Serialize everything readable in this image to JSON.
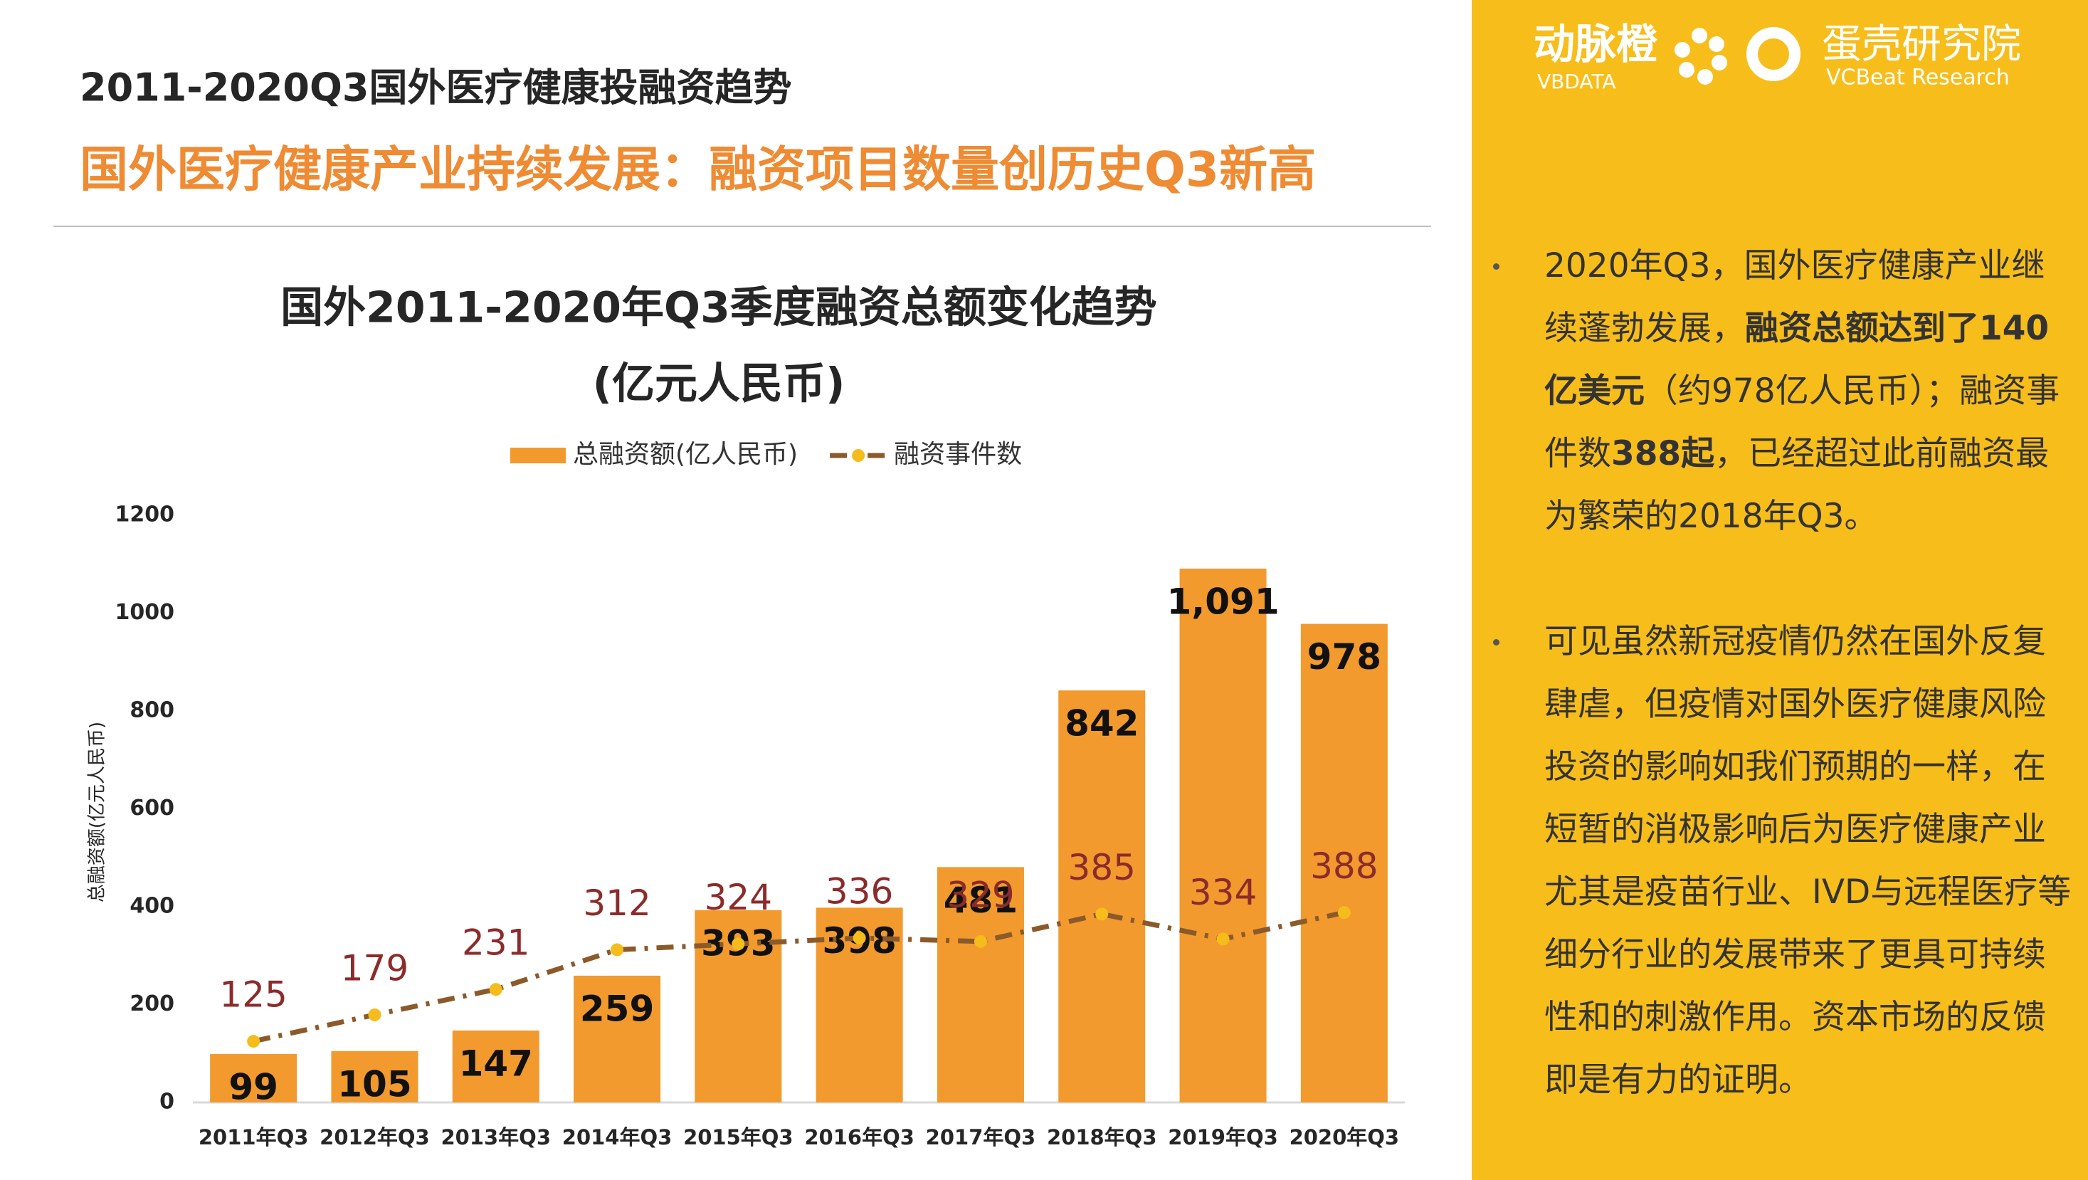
{
  "header": {
    "title": "2011-2020Q3国外医疗健康投融资趋势",
    "subtitle": "国外医疗健康产业持续发展：融资项目数量创历史Q3新高"
  },
  "logo": {
    "brand": "动脉橙",
    "brand_en": "VBDATA",
    "org": "蛋壳研究院",
    "org_en": "VCBeat Research"
  },
  "bullets": [
    [
      "2020年Q3，国外医疗健康产业继续蓬勃发展，",
      "融资总额达到了140亿美元",
      "（约978亿人民币）；融资事件数",
      "388起",
      "，已经超过此前融资最为繁荣的2018年Q3。"
    ],
    [
      "可见虽然新冠疫情仍然在国外反复肆虐，但疫情对国外医疗健康风险投资的影响如我们预期的一样，在短暂的消极影响后为医疗健康产业尤其是疫苗行业、IVD与远程医疗等细分行业的发展带来了更具可持续性和的刺激作用。资本市场的反馈即是有力的证明。"
    ]
  ],
  "chart_data": {
    "type": "bar",
    "title": "国外2011-2020年Q3季度融资总额变化趋势",
    "subtitle": "(亿元人民币)",
    "y_label": "总融资额(亿元人民币)",
    "categories": [
      "2011年Q3",
      "2012年Q3",
      "2013年Q3",
      "2014年Q3",
      "2015年Q3",
      "2016年Q3",
      "2017年Q3",
      "2018年Q3",
      "2019年Q3",
      "2020年Q3"
    ],
    "series": [
      {
        "name": "总融资额(亿人民币)",
        "type": "bar",
        "color": "#F29A2E",
        "values": [
          99,
          105,
          147,
          259,
          393,
          398,
          481,
          842,
          1091,
          978
        ],
        "value_labels": [
          "99",
          "105",
          "147",
          "259",
          "393",
          "398",
          "481",
          "842",
          "1,091",
          "978"
        ]
      },
      {
        "name": "融资事件数",
        "type": "line",
        "color": "#8B5A2B",
        "marker_color": "#F5BC1C",
        "label_color": "#8C2B2B",
        "values": [
          125,
          179,
          231,
          312,
          324,
          336,
          329,
          385,
          334,
          388
        ]
      }
    ],
    "ylim": [
      0,
      1200
    ],
    "yticks": [
      0,
      200,
      400,
      600,
      800,
      1000,
      1200
    ],
    "grid": false
  }
}
